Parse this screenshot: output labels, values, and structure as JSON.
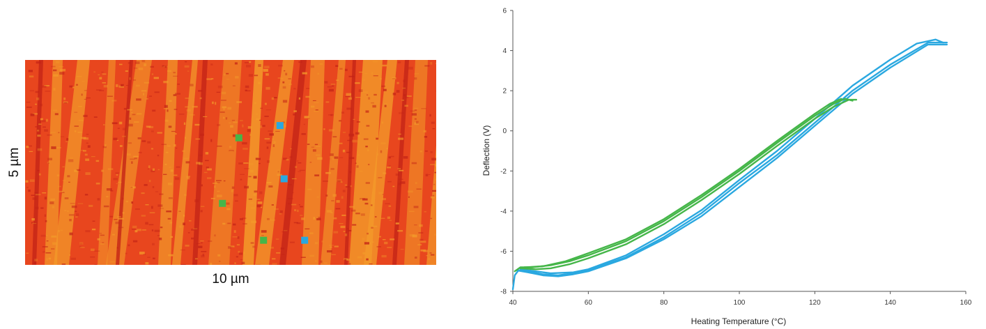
{
  "afm_image": {
    "width_label": "10 µm",
    "height_label": "5 µm",
    "background_color": "#e8461e",
    "stripe_color": "#f39a2a",
    "dark_color": "#c42416",
    "markers": [
      {
        "color": "#45b649",
        "x_um": 5.2,
        "y_um": 1.9
      },
      {
        "color": "#45b649",
        "x_um": 4.8,
        "y_um": 3.5
      },
      {
        "color": "#45b649",
        "x_um": 5.8,
        "y_um": 4.4
      },
      {
        "color": "#2aa8e0",
        "x_um": 6.2,
        "y_um": 1.6
      },
      {
        "color": "#2aa8e0",
        "x_um": 6.3,
        "y_um": 2.9
      },
      {
        "color": "#2aa8e0",
        "x_um": 6.8,
        "y_um": 4.4
      }
    ]
  },
  "chart_data": {
    "type": "line",
    "xlabel": "Heating Temperature (°C)",
    "ylabel": "Deflection (V)",
    "xlim": [
      40,
      160
    ],
    "ylim": [
      -8,
      6
    ],
    "xticks": [
      40,
      60,
      80,
      100,
      120,
      140,
      160
    ],
    "yticks": [
      -8,
      -6,
      -4,
      -2,
      0,
      2,
      4,
      6
    ],
    "grid": false,
    "series": [
      {
        "color": "#2aa8e0",
        "curves": [
          [
            [
              40,
              -7.9
            ],
            [
              40.5,
              -7.2
            ],
            [
              41.5,
              -6.95
            ],
            [
              44,
              -7.0
            ],
            [
              48,
              -7.15
            ],
            [
              52,
              -7.2
            ],
            [
              56,
              -7.1
            ],
            [
              60,
              -6.95
            ],
            [
              70,
              -6.3
            ],
            [
              80,
              -5.3
            ],
            [
              90,
              -4.1
            ],
            [
              100,
              -2.6
            ],
            [
              110,
              -1.2
            ],
            [
              120,
              0.4
            ],
            [
              130,
              2.0
            ],
            [
              140,
              3.3
            ],
            [
              150,
              4.4
            ],
            [
              155,
              4.4
            ]
          ],
          [
            [
              41,
              -6.95
            ],
            [
              44,
              -7.05
            ],
            [
              48,
              -7.2
            ],
            [
              52,
              -7.25
            ],
            [
              56,
              -7.15
            ],
            [
              60,
              -7.0
            ],
            [
              70,
              -6.35
            ],
            [
              80,
              -5.4
            ],
            [
              90,
              -4.25
            ],
            [
              100,
              -2.8
            ],
            [
              110,
              -1.35
            ],
            [
              120,
              0.25
            ],
            [
              130,
              1.85
            ],
            [
              140,
              3.15
            ],
            [
              150,
              4.3
            ],
            [
              155,
              4.3
            ]
          ],
          [
            [
              42,
              -6.9
            ],
            [
              46,
              -7.0
            ],
            [
              50,
              -7.1
            ],
            [
              56,
              -7.05
            ],
            [
              60,
              -6.9
            ],
            [
              70,
              -6.2
            ],
            [
              80,
              -5.15
            ],
            [
              90,
              -3.95
            ],
            [
              100,
              -2.45
            ],
            [
              110,
              -1.0
            ],
            [
              120,
              0.6
            ],
            [
              130,
              2.25
            ],
            [
              140,
              3.55
            ],
            [
              147,
              4.35
            ],
            [
              152,
              4.55
            ],
            [
              154,
              4.4
            ]
          ]
        ]
      },
      {
        "color": "#45b649",
        "curves": [
          [
            [
              40.5,
              -7.0
            ],
            [
              42,
              -6.8
            ],
            [
              45,
              -6.8
            ],
            [
              50,
              -6.7
            ],
            [
              55,
              -6.5
            ],
            [
              60,
              -6.2
            ],
            [
              70,
              -5.5
            ],
            [
              80,
              -4.5
            ],
            [
              90,
              -3.3
            ],
            [
              100,
              -2.0
            ],
            [
              110,
              -0.6
            ],
            [
              120,
              0.75
            ],
            [
              125,
              1.35
            ],
            [
              128,
              1.6
            ],
            [
              130,
              1.5
            ]
          ],
          [
            [
              42,
              -6.85
            ],
            [
              46,
              -6.9
            ],
            [
              50,
              -6.85
            ],
            [
              55,
              -6.65
            ],
            [
              60,
              -6.35
            ],
            [
              70,
              -5.65
            ],
            [
              80,
              -4.65
            ],
            [
              90,
              -3.45
            ],
            [
              100,
              -2.15
            ],
            [
              110,
              -0.75
            ],
            [
              120,
              0.6
            ],
            [
              125,
              1.2
            ],
            [
              129,
              1.55
            ],
            [
              131,
              1.55
            ]
          ],
          [
            [
              43,
              -6.8
            ],
            [
              48,
              -6.75
            ],
            [
              54,
              -6.5
            ],
            [
              60,
              -6.1
            ],
            [
              70,
              -5.4
            ],
            [
              80,
              -4.4
            ],
            [
              90,
              -3.2
            ],
            [
              100,
              -1.9
            ],
            [
              110,
              -0.5
            ],
            [
              120,
              0.85
            ],
            [
              124,
              1.35
            ],
            [
              127,
              1.6
            ]
          ]
        ]
      }
    ]
  }
}
